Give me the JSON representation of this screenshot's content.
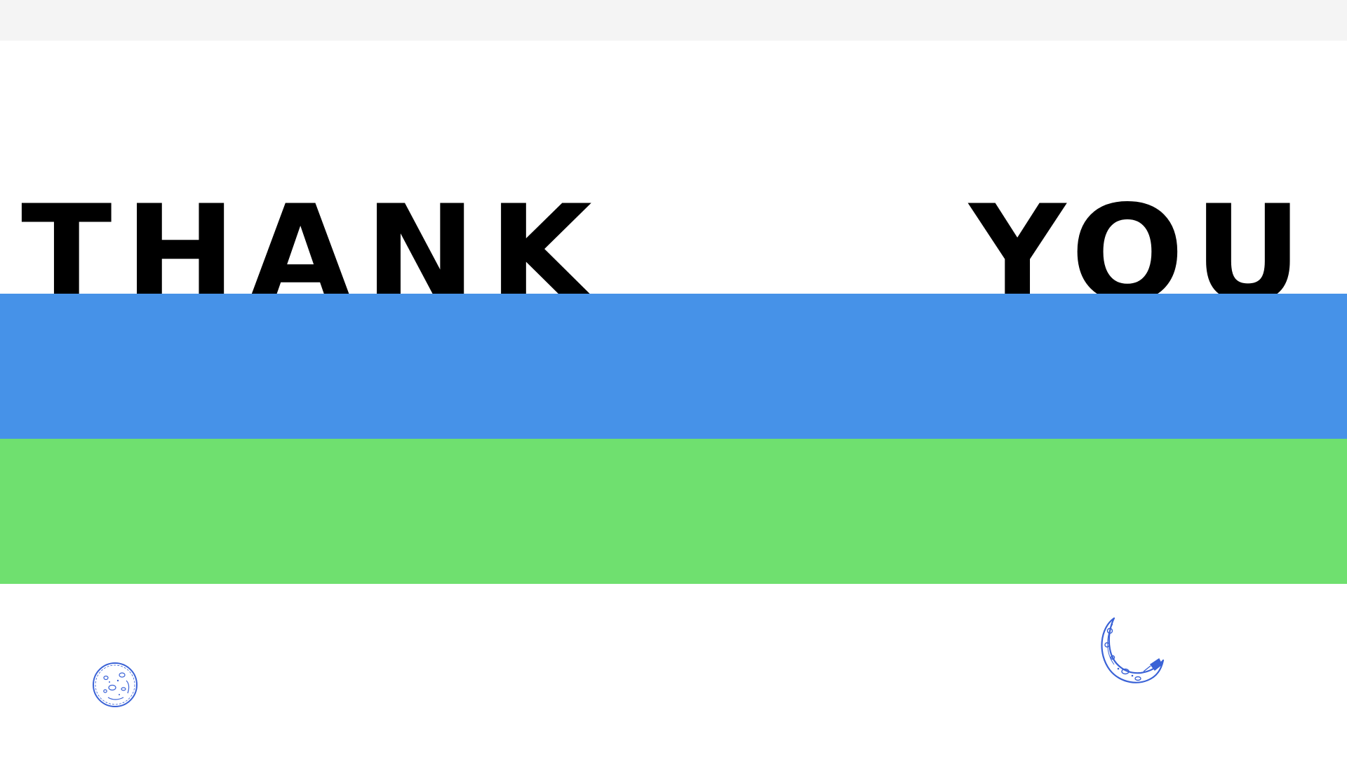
{
  "slide": {
    "title_left": "THANK",
    "title_right": "YOU"
  },
  "colors": {
    "top_strip": "#f4f4f4",
    "background": "#ffffff",
    "text": "#000000",
    "band_blue": "#4692e8",
    "band_green": "#6fe06f",
    "icon_stroke": "#3a62d6"
  },
  "icons": {
    "full_moon": "full-moon-icon",
    "crescent_moon": "crescent-moon-icon"
  }
}
